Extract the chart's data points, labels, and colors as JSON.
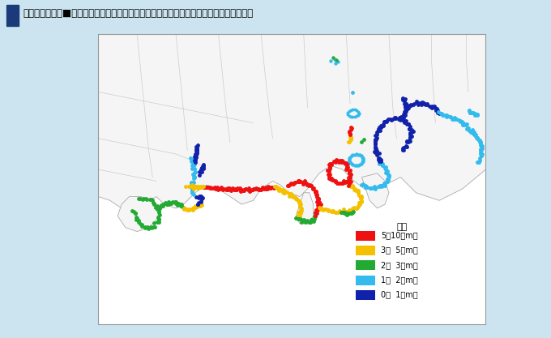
{
  "title": "図２－４－１４■　地震防災対策強化地域の検討の基とする海岸における津波高さの分布",
  "bg_color": "#cce4f0",
  "map_bg": "#ffffff",
  "border_color": "#7ab8d4",
  "map_border_color": "#999999",
  "legend_title": "凡例",
  "legend_items": [
    {
      "label": "5－10（m）",
      "color": "#ee1111"
    },
    {
      "label": "3－  5（m）",
      "color": "#f5c000"
    },
    {
      "label": "2－  3（m）",
      "color": "#22aa33"
    },
    {
      "label": "1－  2（m）",
      "color": "#33bbee"
    },
    {
      "label": "0－  1（m）",
      "color": "#1122aa"
    }
  ],
  "colors": {
    "red": "#ee1111",
    "yellow": "#f5c000",
    "green": "#22aa33",
    "cyan": "#33bbee",
    "navy": "#1122aa"
  },
  "figsize": [
    6.8,
    4.17
  ],
  "dpi": 100
}
